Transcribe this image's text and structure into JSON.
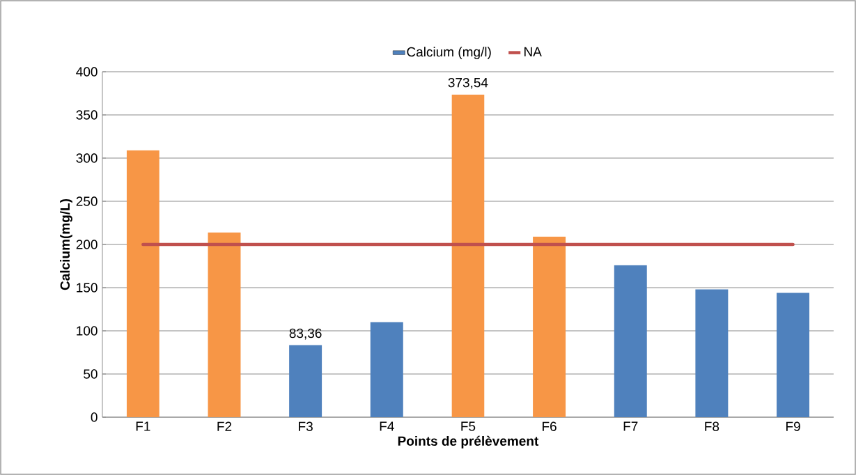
{
  "chart_data": {
    "type": "bar",
    "xlabel": "Points de prélèvement",
    "ylabel": "Calcium(mg/L)",
    "categories": [
      "F1",
      "F2",
      "F3",
      "F4",
      "F5",
      "F6",
      "F7",
      "F8",
      "F9"
    ],
    "series": [
      {
        "name": "Calcium (mg/l)",
        "color": "#4f81bd",
        "colors": [
          "#f79646",
          "#f79646",
          "#4f81bd",
          "#4f81bd",
          "#f79646",
          "#f79646",
          "#4f81bd",
          "#4f81bd",
          "#4f81bd"
        ],
        "values": [
          309,
          214,
          83.36,
          110,
          373.54,
          209,
          176,
          148,
          144
        ],
        "value_labels": [
          null,
          null,
          "83,36",
          null,
          "373,54",
          null,
          null,
          null,
          null
        ]
      },
      {
        "name": "NA",
        "type": "line",
        "color": "#c0504d",
        "values": [
          200,
          200,
          200,
          200,
          200,
          200,
          200,
          200,
          200
        ]
      }
    ],
    "ylim": [
      0,
      400
    ],
    "yticks": [
      0,
      50,
      100,
      150,
      200,
      250,
      300,
      350,
      400
    ],
    "grid": "y",
    "legend": "top"
  }
}
